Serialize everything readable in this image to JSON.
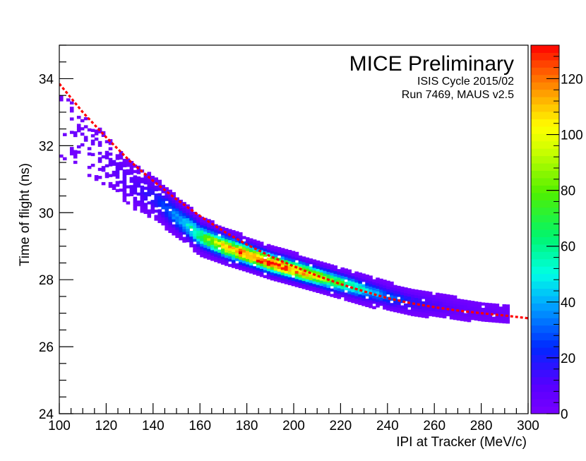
{
  "chart_data": {
    "type": "heatmap",
    "title_lines": [
      "MICE Preliminary",
      "ISIS Cycle 2015/02",
      "Run 7469, MAUS v2.5"
    ],
    "xlabel": "IPI at Tracker (MeV/c)",
    "ylabel": "Time of flight (ns)",
    "xlim": [
      100,
      300
    ],
    "ylim": [
      24,
      35
    ],
    "x_ticks": [
      100,
      120,
      140,
      160,
      180,
      200,
      220,
      240,
      260,
      280,
      300
    ],
    "x_tick_labels": [
      "100",
      "120",
      "140",
      "160",
      "180",
      "200",
      "220",
      "240",
      "260",
      "280",
      "300"
    ],
    "y_ticks": [
      24,
      26,
      28,
      30,
      32,
      34
    ],
    "y_tick_labels": [
      "24",
      "26",
      "28",
      "30",
      "32",
      "34"
    ],
    "colorbar": {
      "range": [
        0,
        132
      ],
      "ticks": [
        0,
        20,
        40,
        60,
        80,
        100,
        120
      ],
      "tick_labels": [
        "0",
        "20",
        "40",
        "60",
        "80",
        "100",
        "120"
      ]
    },
    "band_profile": {
      "description": "mean time of flight vs momentum of the populated band",
      "p": [
        100,
        110,
        120,
        130,
        140,
        150,
        160,
        170,
        180,
        190,
        200,
        210,
        220,
        230,
        240,
        250,
        260,
        270,
        280,
        290
      ],
      "tof": [
        32.6,
        32.0,
        31.5,
        30.8,
        30.4,
        29.8,
        29.25,
        28.95,
        28.7,
        28.45,
        28.25,
        28.05,
        27.85,
        27.65,
        27.45,
        27.3,
        27.2,
        27.1,
        27.0,
        26.95
      ],
      "peak_counts": [
        3,
        4,
        6,
        10,
        18,
        40,
        70,
        105,
        125,
        130,
        120,
        95,
        70,
        48,
        30,
        18,
        10,
        6,
        4,
        3
      ],
      "p_range_populated": [
        100,
        291
      ]
    },
    "fit_curve": {
      "style": "dashed",
      "color": "#ff0000",
      "p": [
        100,
        110,
        120,
        130,
        140,
        150,
        160,
        170,
        180,
        190,
        200,
        210,
        220,
        230,
        240,
        250,
        260,
        270,
        280,
        290,
        300
      ],
      "tof": [
        33.85,
        33.0,
        32.25,
        31.55,
        30.95,
        30.4,
        29.9,
        29.45,
        29.05,
        28.7,
        28.4,
        28.12,
        27.87,
        27.65,
        27.45,
        27.3,
        27.18,
        27.08,
        27.0,
        26.93,
        26.85
      ]
    }
  }
}
